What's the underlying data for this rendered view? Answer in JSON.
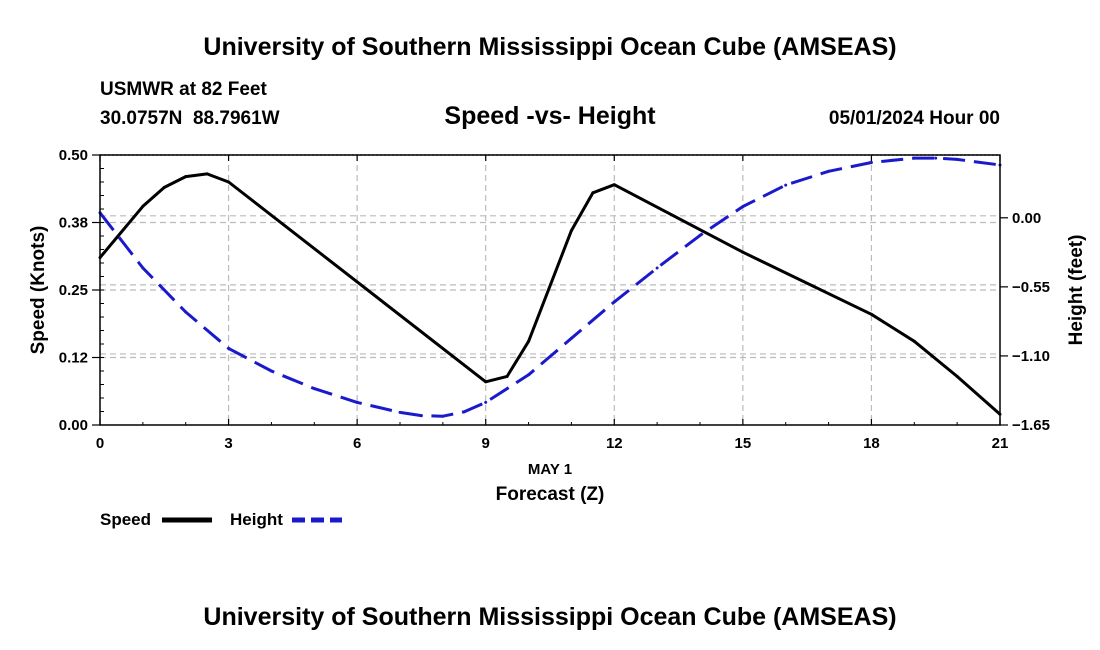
{
  "header": {
    "title": "University of Southern Mississippi Ocean Cube (AMSEAS)",
    "station": "USMWR at 82 Feet",
    "coords": "30.0757N  88.7961W",
    "subtitle": "Speed -vs- Height",
    "datetime": "05/01/2024 Hour 00"
  },
  "footer": {
    "title": "University of Southern Mississippi Ocean Cube (AMSEAS)"
  },
  "colors": {
    "speed": "#000000",
    "height": "#1a1acc",
    "grid": "#bbbbbb"
  },
  "chart_data": {
    "type": "line",
    "title": "Speed -vs- Height",
    "xlabel": "Forecast (Z)",
    "xlabel_date": "MAY 1",
    "ylabel_left": "Speed (Knots)",
    "ylabel_right": "Height (feet)",
    "xlim": [
      0,
      21
    ],
    "ylim_left": [
      0,
      0.5
    ],
    "ylim_right": [
      -1.65,
      0.5
    ],
    "x_ticks": [
      0,
      3,
      6,
      9,
      12,
      15,
      18,
      21
    ],
    "x_tick_labels": [
      "0",
      "3",
      "6",
      "9",
      "12",
      "15",
      "18",
      "21"
    ],
    "y_left_ticks": [
      0,
      0.125,
      0.25,
      0.375,
      0.5
    ],
    "y_left_tick_labels": [
      "0.00",
      "0.12",
      "0.25",
      "0.38",
      "0.50"
    ],
    "y_right_ticks": [
      -1.65,
      -1.1,
      -0.55,
      0.0
    ],
    "y_right_tick_labels": [
      "−1.65",
      "−1.10",
      "−0.55",
      "0.00"
    ],
    "grid": true,
    "legend_position": "bottom-left",
    "series": [
      {
        "name": "Speed",
        "axis": "left",
        "style": "solid",
        "x": [
          0,
          1,
          1.5,
          2,
          2.5,
          3,
          9,
          9.5,
          10,
          11,
          11.5,
          12,
          15,
          18,
          19,
          20,
          21
        ],
        "values": [
          0.31,
          0.405,
          0.44,
          0.46,
          0.465,
          0.45,
          0.08,
          0.09,
          0.155,
          0.36,
          0.43,
          0.445,
          0.32,
          0.205,
          0.155,
          0.09,
          0.02
        ]
      },
      {
        "name": "Height",
        "axis": "right",
        "style": "dashed",
        "x": [
          0,
          1,
          2,
          3,
          4,
          5,
          6,
          7,
          7.5,
          8,
          8.5,
          9,
          10,
          11,
          12,
          13,
          14,
          15,
          16,
          17,
          18,
          19,
          19.5,
          20,
          21
        ],
        "values": [
          0.04,
          -0.4,
          -0.75,
          -1.04,
          -1.22,
          -1.36,
          -1.47,
          -1.55,
          -1.575,
          -1.58,
          -1.545,
          -1.47,
          -1.25,
          -0.96,
          -0.67,
          -0.4,
          -0.14,
          0.09,
          0.26,
          0.37,
          0.44,
          0.475,
          0.475,
          0.465,
          0.42
        ]
      }
    ]
  }
}
